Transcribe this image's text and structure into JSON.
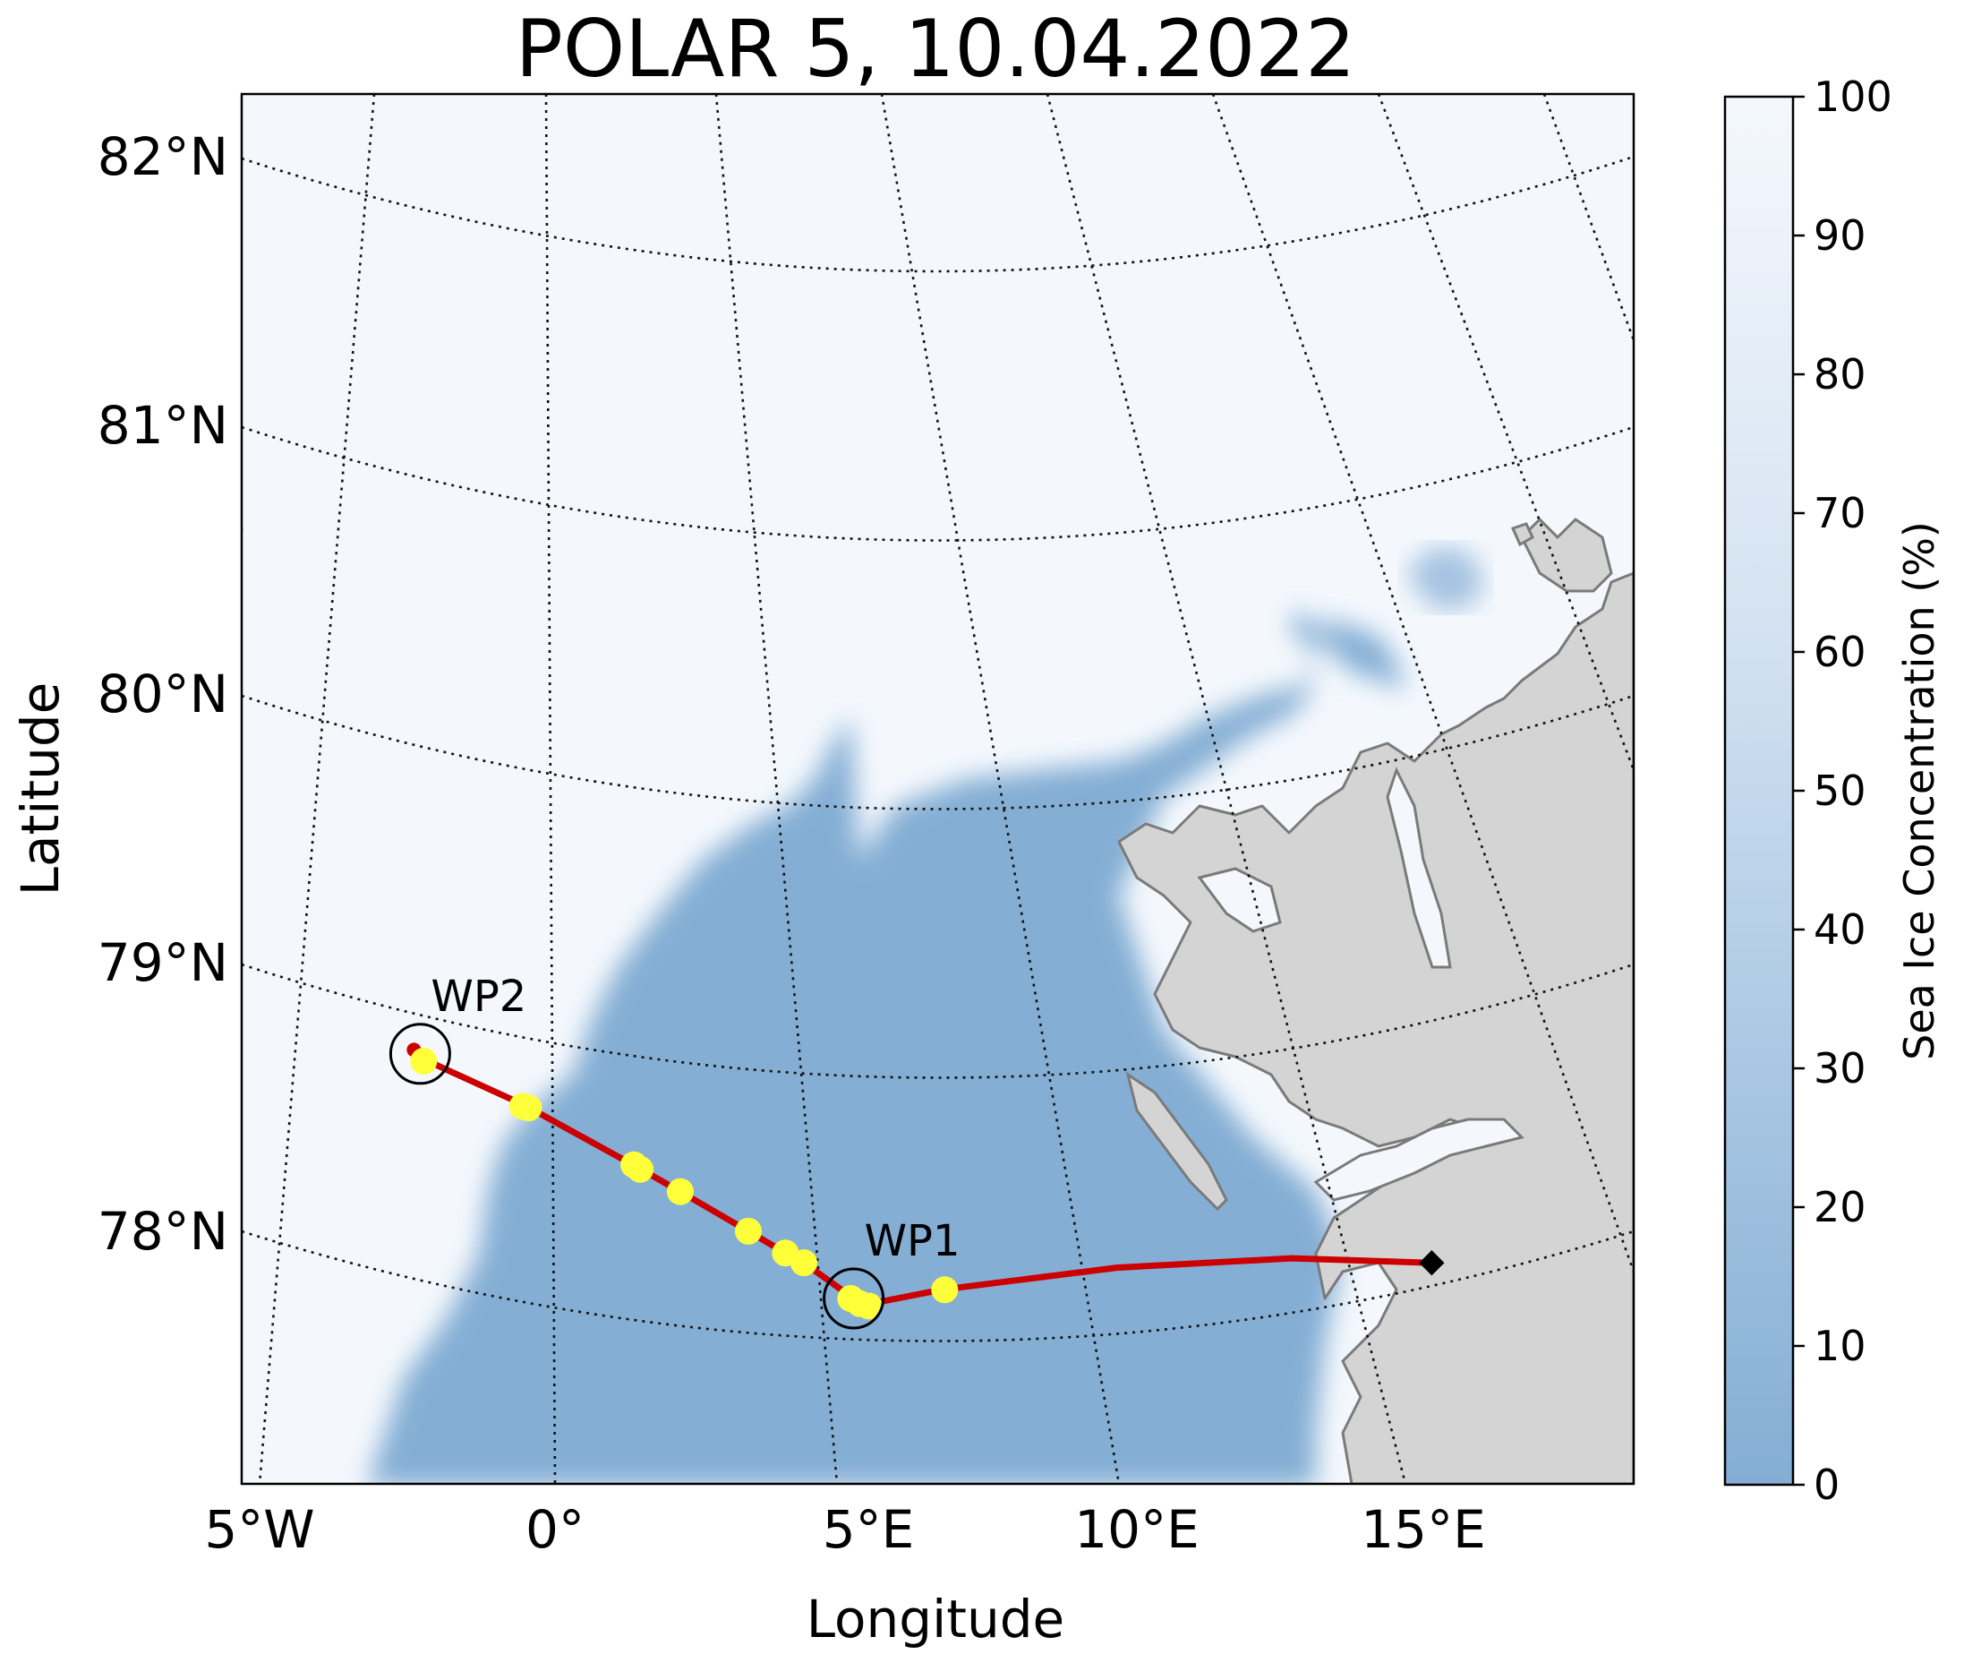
{
  "title": "POLAR 5, 10.04.2022",
  "axes": {
    "xlabel": "Longitude",
    "ylabel": "Latitude",
    "lon_ticks": [
      "5°W",
      "0°",
      "5°E",
      "10°E",
      "15°E"
    ],
    "lat_ticks": [
      "82°N",
      "81°N",
      "80°N",
      "79°N",
      "78°N"
    ]
  },
  "colorbar": {
    "label": "Sea Ice Concentration (%)",
    "ticks": [
      "0",
      "10",
      "20",
      "30",
      "40",
      "50",
      "60",
      "70",
      "80",
      "90",
      "100"
    ],
    "range": [
      0,
      100
    ],
    "colors": {
      "low": "#84aed4",
      "high": "#f4f8fd"
    }
  },
  "colors": {
    "ice": "#f4f8fd",
    "open_water": "#84aed4",
    "land": "#d4d4d4",
    "coastline": "#7a7a7a",
    "track": "#cc0000",
    "samples": "#ffff3a"
  },
  "waypoints": [
    {
      "label": "WP2",
      "lon": -2.0,
      "lat": 78.93
    },
    {
      "label": "WP1",
      "lon": 5.0,
      "lat": 77.82
    }
  ],
  "base_marker": {
    "symbol": "diamond",
    "lon": 14.9,
    "lat": 78.2
  },
  "chart_data": {
    "type": "map",
    "title": "POLAR 5, 10.04.2022",
    "xlabel": "Longitude",
    "ylabel": "Latitude",
    "lon_range": [
      -5,
      18
    ],
    "lat_range": [
      77.2,
      82.3
    ],
    "colorbar_range": [
      0,
      100
    ],
    "flight_track": [
      {
        "lon": -2.1,
        "lat": 78.95
      },
      {
        "lon": -1.9,
        "lat": 78.9
      },
      {
        "lon": -0.3,
        "lat": 78.66
      },
      {
        "lon": 1.5,
        "lat": 78.37
      },
      {
        "lon": 2.2,
        "lat": 78.26
      },
      {
        "lon": 3.3,
        "lat": 78.09
      },
      {
        "lon": 3.9,
        "lat": 78.0
      },
      {
        "lon": 4.2,
        "lat": 77.96
      },
      {
        "lon": 5.0,
        "lat": 77.82
      },
      {
        "lon": 5.3,
        "lat": 77.8
      },
      {
        "lon": 6.5,
        "lat": 77.85
      },
      {
        "lon": 9.5,
        "lat": 77.97
      },
      {
        "lon": 12.5,
        "lat": 78.1
      },
      {
        "lon": 14.9,
        "lat": 78.2
      }
    ],
    "samples": [
      {
        "lon": -1.95,
        "lat": 78.9
      },
      {
        "lon": -0.35,
        "lat": 78.66
      },
      {
        "lon": -0.25,
        "lat": 78.65
      },
      {
        "lon": 1.45,
        "lat": 78.38
      },
      {
        "lon": 1.55,
        "lat": 78.36
      },
      {
        "lon": 2.2,
        "lat": 78.26
      },
      {
        "lon": 3.3,
        "lat": 78.09
      },
      {
        "lon": 3.9,
        "lat": 78.0
      },
      {
        "lon": 4.2,
        "lat": 77.96
      },
      {
        "lon": 4.95,
        "lat": 77.82
      },
      {
        "lon": 5.1,
        "lat": 77.8
      },
      {
        "lon": 5.25,
        "lat": 77.79
      },
      {
        "lon": 6.55,
        "lat": 77.85
      }
    ]
  }
}
